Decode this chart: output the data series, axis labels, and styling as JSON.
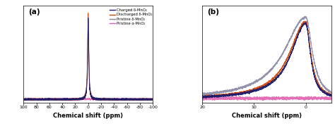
{
  "title_a": "(a)",
  "title_b": "(b)",
  "xlabel": "Chemical shift (ppm)",
  "xlim_a": [
    100,
    -100
  ],
  "xlim_b": [
    20,
    -5
  ],
  "xticks_a": [
    100,
    80,
    60,
    40,
    20,
    0,
    -20,
    -40,
    -60,
    -80,
    -100
  ],
  "xticks_b": [
    20,
    10,
    0
  ],
  "xtick_labels_b": [
    "20",
    "10",
    "0"
  ],
  "colors": {
    "charged": "#1a1a6e",
    "discharged": "#d44000",
    "pristine_delta": "#8080a0",
    "pristine_alpha": "#e060b0"
  },
  "legend_labels": [
    "Charged δ-MnO₂",
    "Discharged δ-MnO₂",
    "Pristine δ-MnO₂",
    "Pristine α-MnO₂"
  ],
  "background_color": "#ffffff"
}
